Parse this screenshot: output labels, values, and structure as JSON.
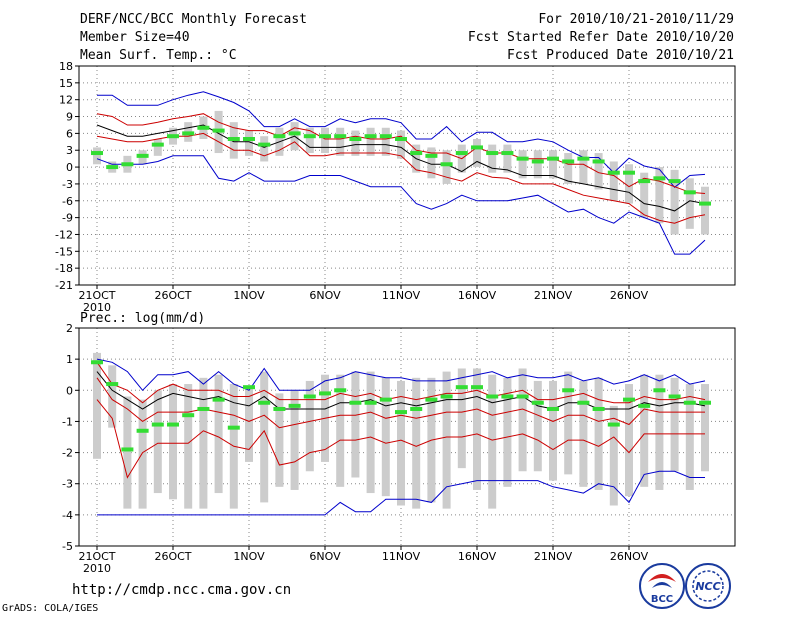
{
  "header": {
    "title": "DERF/NCC/BCC Monthly Forecast",
    "member_size": "Member Size=40",
    "variable": "Mean Surf. Temp.: °C",
    "period": "For 2010/10/21-2010/11/29",
    "started": "Fcst Started Refer Date 2010/10/20",
    "produced": "Fcst Produced Date 2010/10/21"
  },
  "footer": {
    "url": "http://cmdp.ncc.cma.gov.cn",
    "grads": "GrADS: COLA/IGES",
    "logo_bcc": "BCC",
    "logo_ncc": "NCC"
  },
  "colors": {
    "spread": "#0000cc",
    "inner": "#cc0000",
    "mean": "#000000",
    "median": "#33dd33",
    "box": "#cccccc"
  },
  "chart_data": [
    {
      "type": "line",
      "name": "temperature",
      "title": "Mean Surf. Temp.: °C",
      "ylim": [
        -21,
        18
      ],
      "yticks": [
        18,
        15,
        12,
        9,
        6,
        3,
        0,
        -3,
        -6,
        -9,
        -12,
        -15,
        -18,
        -21
      ],
      "xlim": [
        0,
        40
      ],
      "xtick_positions": [
        0,
        5,
        10,
        15,
        20,
        25,
        30,
        35
      ],
      "xtick_labels": [
        "21OCT",
        "26OCT",
        "1NOV",
        "6NOV",
        "11NOV",
        "16NOV",
        "21NOV",
        "26NOV"
      ],
      "year_label": "2010",
      "grid": true,
      "series": [
        {
          "name": "max",
          "color": "#0000cc",
          "values": [
            12.8,
            12.8,
            11,
            11,
            11,
            12,
            12.8,
            13.4,
            12.5,
            11.5,
            10,
            7.2,
            7.2,
            8.6,
            7.2,
            7.2,
            8.6,
            7.9,
            8.6,
            8.6,
            7.9,
            5,
            5,
            7.2,
            4.5,
            6.2,
            6.2,
            4.5,
            4.5,
            5,
            4.5,
            3,
            1.7,
            1.7,
            -1,
            1.6,
            0.2,
            -0.4,
            -3.6,
            -1.5,
            -1.3
          ]
        },
        {
          "name": "p90",
          "color": "#cc0000",
          "values": [
            9.5,
            9,
            7.5,
            7.5,
            8,
            8.6,
            9,
            9.5,
            8,
            7,
            6.5,
            6.5,
            5.5,
            7,
            6.5,
            5,
            5,
            5.5,
            5,
            5,
            5.5,
            3,
            2.5,
            2.5,
            1.5,
            3.5,
            2.5,
            2.5,
            1.5,
            1.5,
            1.5,
            0.5,
            0.5,
            -1,
            -1.5,
            -3.5,
            -2,
            -2.5,
            -3.5,
            -4.5,
            -4.7
          ]
        },
        {
          "name": "mean",
          "color": "#000000",
          "values": [
            7.5,
            6.5,
            5.5,
            5.5,
            6,
            6.5,
            7,
            7.5,
            6,
            4.5,
            4.5,
            3.5,
            4.5,
            5.5,
            3.5,
            3.5,
            3.5,
            4,
            4,
            4,
            3.5,
            1.5,
            0.5,
            0.5,
            -0.8,
            1,
            -0.2,
            -0.5,
            -1.5,
            -1.5,
            -1.5,
            -2.5,
            -3,
            -3.5,
            -4,
            -4.5,
            -6.5,
            -7,
            -7.8,
            -6,
            -6.5
          ]
        },
        {
          "name": "p10",
          "color": "#cc0000",
          "values": [
            5.5,
            5,
            4.5,
            4.5,
            5,
            5.5,
            5.5,
            6,
            4.5,
            3,
            3,
            2,
            3,
            4.5,
            2,
            2,
            2.5,
            2.5,
            2.5,
            2.5,
            2,
            -0.5,
            -1,
            -1.8,
            -2.5,
            -1,
            -1.8,
            -2,
            -3,
            -3,
            -3,
            -4,
            -5,
            -5.5,
            -6,
            -6.5,
            -8.5,
            -9.5,
            -10,
            -9,
            -8.5
          ]
        },
        {
          "name": "min",
          "color": "#0000cc",
          "values": [
            1.5,
            0.5,
            0.5,
            0.5,
            1,
            2,
            2,
            2,
            -2,
            -2.5,
            -1,
            -2.5,
            -2.5,
            -2.5,
            -1.5,
            -1.5,
            -1.5,
            -2.5,
            -3.5,
            -3.5,
            -3.5,
            -6.5,
            -7.5,
            -6.5,
            -5,
            -6,
            -6,
            -6,
            -5.5,
            -5,
            -6.5,
            -8,
            -7.5,
            -9,
            -10,
            -8,
            -9,
            -10,
            -15.5,
            -15.5,
            -13
          ]
        },
        {
          "name": "median",
          "color": "#33dd33",
          "values": [
            2.5,
            0,
            0.5,
            2,
            4,
            5.5,
            6,
            7,
            6.5,
            5,
            5,
            4,
            5.5,
            6,
            5.5,
            5.5,
            5.5,
            5,
            5.5,
            5.5,
            5,
            2.5,
            2,
            0.5,
            2.5,
            3.5,
            2.5,
            2.5,
            1.5,
            1,
            1.5,
            1,
            1.5,
            1,
            -1,
            -1,
            -2.5,
            -2,
            -2.5,
            -4.5,
            -6.5
          ]
        },
        {
          "name": "box_top",
          "color": "#cccccc",
          "values": [
            3.5,
            1,
            2,
            3,
            5,
            7,
            8,
            9,
            10,
            8,
            6.5,
            5.5,
            7,
            8,
            7,
            7,
            7,
            6.5,
            7,
            7,
            6.5,
            4,
            3.5,
            3,
            4,
            5,
            4,
            4,
            3,
            3,
            3,
            2.5,
            3,
            2.5,
            1,
            0.5,
            -1,
            0,
            -0.5,
            -2,
            -3.5
          ]
        },
        {
          "name": "box_bottom",
          "color": "#cccccc",
          "values": [
            0.5,
            -1,
            -1,
            0.5,
            2,
            4,
            4.5,
            5,
            2.5,
            1.5,
            2,
            1,
            2,
            3,
            2.5,
            2.5,
            2,
            2,
            2,
            2,
            1.5,
            -1,
            -2,
            -3,
            -1,
            0,
            -1,
            -1,
            -2,
            -2,
            -2,
            -3,
            -3,
            -4,
            -6,
            -6.5,
            -9,
            -10,
            -12,
            -11,
            -12
          ]
        }
      ]
    },
    {
      "type": "line",
      "name": "precipitation",
      "title": "Prec.: log(mm/d)",
      "ylim": [
        -5,
        2
      ],
      "yticks": [
        2,
        1,
        0,
        -1,
        -2,
        -3,
        -4,
        -5
      ],
      "xlim": [
        0,
        40
      ],
      "xtick_positions": [
        0,
        5,
        10,
        15,
        20,
        25,
        30,
        35
      ],
      "xtick_labels": [
        "21OCT",
        "26OCT",
        "1NOV",
        "6NOV",
        "11NOV",
        "16NOV",
        "21NOV",
        "26NOV"
      ],
      "year_label": "2010",
      "grid": true,
      "series": [
        {
          "name": "max",
          "color": "#0000cc",
          "values": [
            1,
            0.9,
            0.6,
            0,
            0.5,
            0.5,
            0.6,
            0.2,
            0.6,
            0.2,
            0,
            0.7,
            0,
            0,
            0,
            0.3,
            0.4,
            0.6,
            0.5,
            0.4,
            0.4,
            0.3,
            0.3,
            0.3,
            0.4,
            0.5,
            0.6,
            0.4,
            0.5,
            0.4,
            0.4,
            0.5,
            0.3,
            0.4,
            0.2,
            0.3,
            0.5,
            0.3,
            0.5,
            0.2,
            0.3
          ]
        },
        {
          "name": "p90",
          "color": "#cc0000",
          "values": [
            0.9,
            0.2,
            0,
            -0.4,
            0,
            0.2,
            0,
            0,
            0,
            -0.2,
            -0.2,
            0,
            -0.3,
            -0.3,
            -0.3,
            -0.3,
            -0.1,
            -0.2,
            -0.1,
            -0.3,
            -0.2,
            -0.3,
            -0.2,
            -0.1,
            -0.1,
            0,
            -0.2,
            -0.1,
            0,
            -0.3,
            -0.3,
            -0.2,
            -0.1,
            -0.3,
            -0.4,
            -0.4,
            -0.2,
            -0.3,
            -0.3,
            -0.2,
            -0.3
          ]
        },
        {
          "name": "mean",
          "color": "#000000",
          "values": [
            0.6,
            0,
            -0.3,
            -0.6,
            -0.3,
            -0.1,
            -0.2,
            -0.3,
            -0.2,
            -0.4,
            -0.5,
            -0.2,
            -0.6,
            -0.6,
            -0.6,
            -0.6,
            -0.4,
            -0.4,
            -0.3,
            -0.5,
            -0.4,
            -0.5,
            -0.4,
            -0.3,
            -0.3,
            -0.2,
            -0.4,
            -0.3,
            -0.2,
            -0.5,
            -0.6,
            -0.4,
            -0.4,
            -0.6,
            -0.6,
            -0.6,
            -0.4,
            -0.5,
            -0.4,
            -0.4,
            -0.5
          ]
        },
        {
          "name": "p10",
          "color": "#cc0000",
          "values": [
            0.4,
            -0.3,
            -0.6,
            -1,
            -0.7,
            -0.7,
            -0.7,
            -0.6,
            -0.7,
            -0.8,
            -1,
            -0.8,
            -1.2,
            -1.1,
            -1,
            -0.9,
            -0.8,
            -0.8,
            -0.7,
            -0.9,
            -0.8,
            -0.9,
            -0.8,
            -0.7,
            -0.7,
            -0.6,
            -0.8,
            -0.7,
            -0.6,
            -0.8,
            -1,
            -0.8,
            -0.8,
            -1,
            -0.9,
            -1.1,
            -0.6,
            -0.7,
            -0.7,
            -0.7,
            -0.7
          ]
        },
        {
          "name": "p5",
          "color": "#cc0000",
          "values": [
            -0.3,
            -0.9,
            -2.8,
            -2,
            -1.7,
            -1.7,
            -1.7,
            -1.3,
            -1.5,
            -1.8,
            -1.9,
            -1.3,
            -2.4,
            -2.3,
            -2,
            -1.9,
            -1.6,
            -1.6,
            -1.5,
            -1.7,
            -1.6,
            -1.8,
            -1.6,
            -1.5,
            -1.5,
            -1.4,
            -1.6,
            -1.5,
            -1.4,
            -1.6,
            -1.9,
            -1.6,
            -1.6,
            -1.8,
            -1.5,
            -2,
            -1.4,
            -1.4,
            -1.4,
            -1.4,
            -1.4
          ]
        },
        {
          "name": "min",
          "color": "#0000cc",
          "values": [
            -4,
            -4,
            -4,
            -4,
            -4,
            -4,
            -4,
            -4,
            -4,
            -4,
            -4,
            -4,
            -4,
            -4,
            -4,
            -4,
            -3.6,
            -3.9,
            -3.9,
            -3.5,
            -3.5,
            -3.5,
            -3.6,
            -3.1,
            -3,
            -2.9,
            -2.9,
            -2.9,
            -2.9,
            -2.9,
            -3.1,
            -3.2,
            -3.3,
            -3,
            -3.1,
            -3.6,
            -2.7,
            -2.6,
            -2.6,
            -2.8,
            -2.8
          ]
        },
        {
          "name": "median",
          "color": "#33dd33",
          "values": [
            0.9,
            0.2,
            -1.9,
            -1.3,
            -1.1,
            -1.1,
            -0.8,
            -0.6,
            -0.3,
            -1.2,
            0.1,
            -0.4,
            -0.6,
            -0.5,
            -0.2,
            -0.1,
            0,
            -0.4,
            -0.4,
            -0.3,
            -0.7,
            -0.6,
            -0.3,
            -0.2,
            0.1,
            0.1,
            -0.2,
            -0.2,
            -0.2,
            -0.4,
            -0.6,
            0,
            -0.4,
            -0.6,
            -1.1,
            -0.3,
            -0.5,
            0,
            -0.2,
            -0.4,
            -0.4
          ]
        },
        {
          "name": "box_top",
          "color": "#cccccc",
          "values": [
            1.2,
            0.8,
            -0.2,
            -0.3,
            0,
            0.2,
            0.2,
            0.4,
            0.5,
            0.2,
            0.1,
            0.6,
            -0.1,
            0,
            0.3,
            0.5,
            0.5,
            0.6,
            0.6,
            0.4,
            0.3,
            0.4,
            0.4,
            0.6,
            0.7,
            0.7,
            0.5,
            0.4,
            0.7,
            0.3,
            0.3,
            0.6,
            0.3,
            0.4,
            -0.5,
            0.2,
            0.5,
            0.5,
            0.4,
            0.2,
            0.2
          ]
        },
        {
          "name": "box_bottom",
          "color": "#cccccc",
          "values": [
            -2.2,
            -1.2,
            -3.8,
            -3.8,
            -3.3,
            -3.5,
            -3.8,
            -3.8,
            -3.3,
            -3.8,
            -2.3,
            -3.6,
            -3.1,
            -3.2,
            -2.6,
            -2.3,
            -3.1,
            -2.8,
            -3.3,
            -3.4,
            -3.7,
            -3.8,
            -3.6,
            -3.8,
            -2.5,
            -3.2,
            -3.8,
            -3.1,
            -2.6,
            -2.6,
            -2.9,
            -2.7,
            -3.1,
            -3.2,
            -3.7,
            -3.4,
            -3.1,
            -3.2,
            -2.6,
            -3.2,
            -2.6
          ]
        }
      ]
    }
  ]
}
